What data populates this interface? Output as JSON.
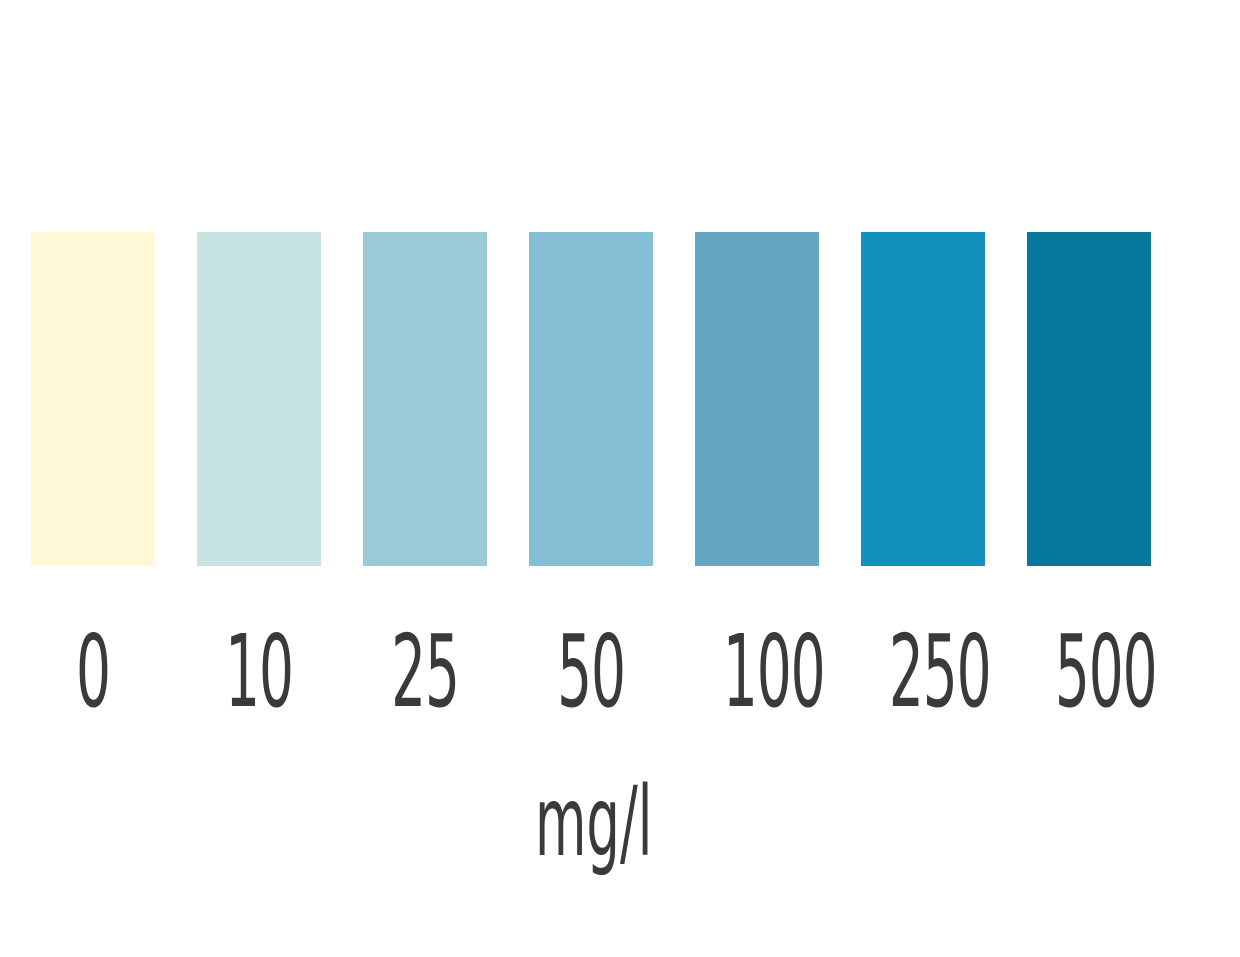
{
  "color_scale": {
    "unit": "mg/l",
    "levels": [
      {
        "value": "0",
        "color": "#fef8d6"
      },
      {
        "value": "10",
        "color": "#c7e3e2"
      },
      {
        "value": "25",
        "color": "#9bcad6"
      },
      {
        "value": "50",
        "color": "#85bfd5"
      },
      {
        "value": "100",
        "color": "#63a7c3"
      },
      {
        "value": "250",
        "color": "#1391bd"
      },
      {
        "value": "500",
        "color": "#07799d"
      }
    ]
  }
}
